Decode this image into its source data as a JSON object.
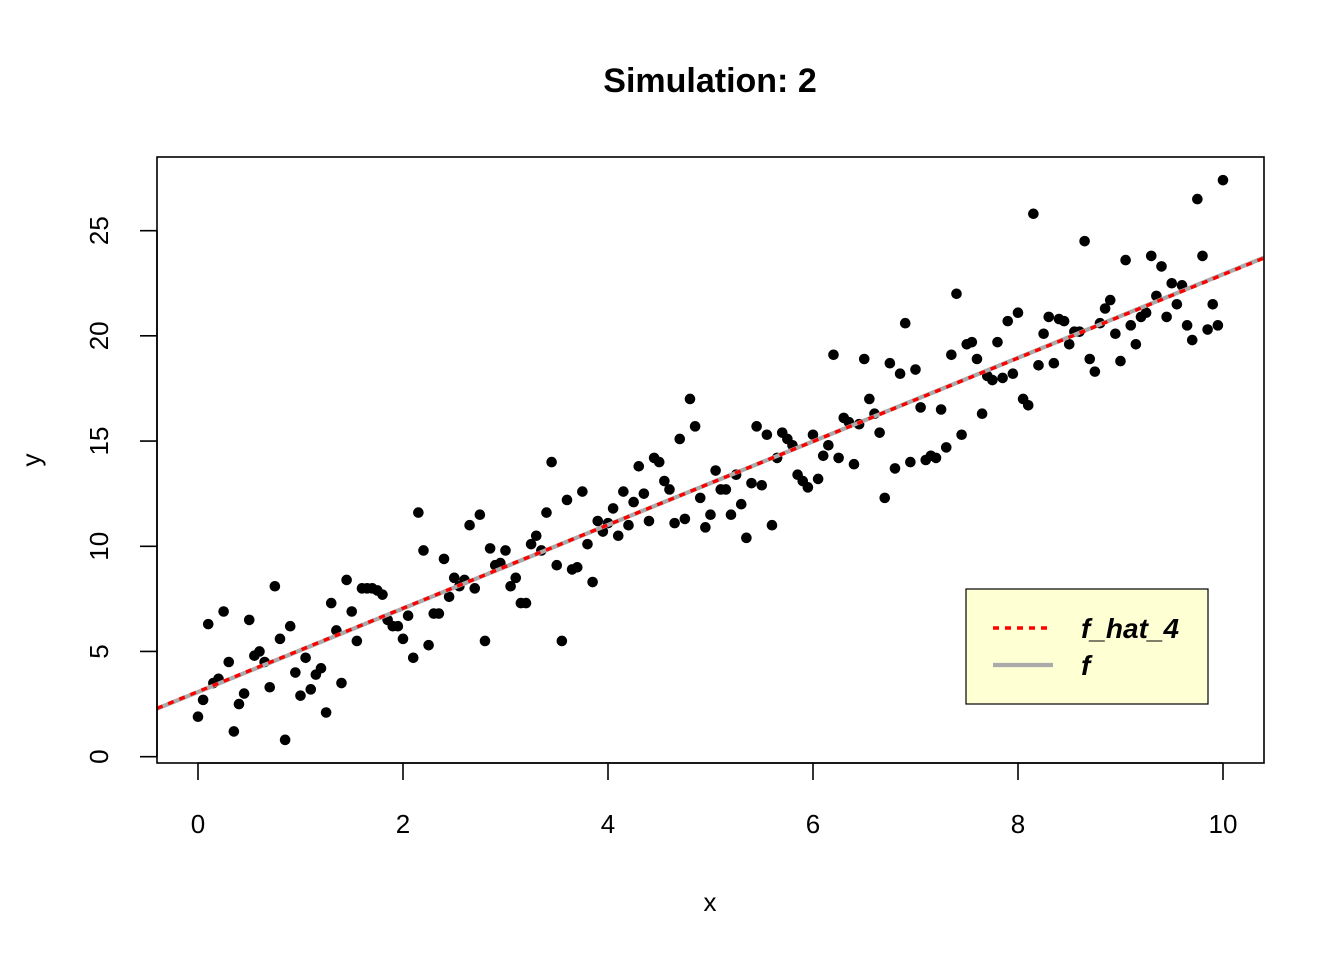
{
  "chart_data": {
    "type": "scatter",
    "title": "Simulation: 2",
    "xlabel": "x",
    "ylabel": "y",
    "xlim": [
      -0.4,
      10.4
    ],
    "ylim": [
      -0.3,
      28.5
    ],
    "xticks": [
      0,
      2,
      4,
      6,
      8,
      10
    ],
    "yticks": [
      0,
      5,
      10,
      15,
      20,
      25
    ],
    "grid": false,
    "legend_position": "bottom-right",
    "legend_background": "#ffffd4",
    "points": {
      "color": "#000000",
      "x": [
        0,
        0.05,
        0.1,
        0.15,
        0.2,
        0.25,
        0.3,
        0.35,
        0.4,
        0.45,
        0.5,
        0.55,
        0.6,
        0.65,
        0.7,
        0.75,
        0.8,
        0.85,
        0.9,
        0.95,
        1.0,
        1.05,
        1.1,
        1.15,
        1.2,
        1.25,
        1.3,
        1.35,
        1.4,
        1.45,
        1.5,
        1.55,
        1.6,
        1.65,
        1.7,
        1.75,
        1.8,
        1.85,
        1.9,
        1.95,
        2.0,
        2.05,
        2.1,
        2.15,
        2.2,
        2.25,
        2.3,
        2.35,
        2.4,
        2.45,
        2.5,
        2.55,
        2.6,
        2.65,
        2.7,
        2.75,
        2.8,
        2.85,
        2.9,
        2.95,
        3.0,
        3.05,
        3.1,
        3.15,
        3.2,
        3.25,
        3.3,
        3.35,
        3.4,
        3.45,
        3.5,
        3.55,
        3.6,
        3.65,
        3.7,
        3.75,
        3.8,
        3.85,
        3.9,
        3.95,
        4.0,
        4.05,
        4.1,
        4.15,
        4.2,
        4.25,
        4.3,
        4.35,
        4.4,
        4.45,
        4.5,
        4.55,
        4.6,
        4.65,
        4.7,
        4.75,
        4.8,
        4.85,
        4.9,
        4.95,
        5.0,
        5.05,
        5.1,
        5.15,
        5.2,
        5.25,
        5.3,
        5.35,
        5.4,
        5.45,
        5.5,
        5.55,
        5.6,
        5.65,
        5.7,
        5.75,
        5.8,
        5.85,
        5.9,
        5.95,
        6.0,
        6.05,
        6.1,
        6.15,
        6.2,
        6.25,
        6.3,
        6.35,
        6.4,
        6.45,
        6.5,
        6.55,
        6.6,
        6.65,
        6.7,
        6.75,
        6.8,
        6.85,
        6.9,
        6.95,
        7.0,
        7.05,
        7.1,
        7.15,
        7.2,
        7.25,
        7.3,
        7.35,
        7.4,
        7.45,
        7.5,
        7.55,
        7.6,
        7.65,
        7.7,
        7.75,
        7.8,
        7.85,
        7.9,
        7.95,
        8.0,
        8.05,
        8.1,
        8.15,
        8.2,
        8.25,
        8.3,
        8.35,
        8.4,
        8.45,
        8.5,
        8.55,
        8.6,
        8.65,
        8.7,
        8.75,
        8.8,
        8.85,
        8.9,
        8.95,
        9.0,
        9.05,
        9.1,
        9.15,
        9.2,
        9.25,
        9.3,
        9.35,
        9.4,
        9.45,
        9.5,
        9.55,
        9.6,
        9.65,
        9.7,
        9.75,
        9.8,
        9.85,
        9.9,
        9.95,
        10.0
      ],
      "y": [
        1.9,
        2.7,
        6.3,
        3.5,
        3.7,
        6.9,
        4.5,
        1.2,
        2.5,
        3.0,
        6.5,
        4.8,
        5.0,
        4.5,
        3.3,
        8.1,
        5.6,
        0.8,
        6.2,
        4.0,
        2.9,
        4.7,
        3.2,
        3.9,
        4.2,
        2.1,
        7.3,
        6.0,
        3.5,
        8.4,
        6.9,
        5.5,
        8.0,
        8.0,
        8.0,
        7.9,
        7.7,
        6.5,
        6.2,
        6.2,
        5.6,
        6.7,
        4.7,
        11.6,
        9.8,
        5.3,
        6.8,
        6.8,
        9.4,
        7.6,
        8.5,
        8.1,
        8.4,
        11.0,
        8.0,
        11.5,
        5.5,
        9.9,
        9.1,
        9.2,
        9.8,
        8.1,
        8.5,
        7.3,
        7.3,
        10.1,
        10.5,
        9.8,
        11.6,
        14.0,
        9.1,
        5.5,
        12.2,
        8.9,
        9.0,
        12.6,
        10.1,
        8.3,
        11.2,
        10.7,
        11.1,
        11.8,
        10.5,
        12.6,
        11.0,
        12.1,
        13.8,
        12.5,
        11.2,
        14.2,
        14.0,
        13.1,
        12.7,
        11.1,
        15.1,
        11.3,
        17.0,
        15.7,
        12.3,
        10.9,
        11.5,
        13.6,
        12.7,
        12.7,
        11.5,
        13.4,
        12.0,
        10.4,
        13.0,
        15.7,
        12.9,
        15.3,
        11.0,
        14.2,
        15.4,
        15.1,
        14.8,
        13.4,
        13.1,
        12.8,
        15.3,
        13.2,
        14.3,
        14.8,
        19.1,
        14.2,
        16.1,
        15.9,
        13.9,
        15.8,
        18.9,
        17.0,
        16.3,
        15.4,
        12.3,
        18.7,
        13.7,
        18.2,
        20.6,
        14.0,
        18.4,
        16.6,
        14.1,
        14.3,
        14.2,
        16.5,
        14.7,
        19.1,
        22.0,
        15.3,
        19.6,
        19.7,
        18.9,
        16.3,
        18.1,
        17.9,
        19.7,
        18.0,
        20.7,
        18.2,
        21.1,
        17.0,
        16.7,
        25.8,
        18.6,
        20.1,
        20.9,
        18.7,
        20.8,
        20.7,
        19.6,
        20.2,
        20.2,
        24.5,
        18.9,
        18.3,
        20.6,
        21.3,
        21.7,
        20.1,
        18.8,
        23.6,
        20.5,
        19.6,
        20.9,
        21.1,
        23.8,
        21.9,
        23.3,
        20.9,
        22.5,
        21.5,
        22.4,
        20.5,
        19.8,
        26.5,
        23.8,
        20.3,
        21.5,
        20.5,
        27.4
      ]
    },
    "series": [
      {
        "name": "f",
        "type": "line",
        "color": "#aaaaaa",
        "style": "solid",
        "x": [
          -0.4,
          10.4
        ],
        "y": [
          2.28,
          23.72
        ]
      },
      {
        "name": "f_hat_4",
        "type": "line",
        "color": "#ff0000",
        "style": "dotted",
        "x": [
          -0.4,
          10.4
        ],
        "y": [
          2.3,
          23.7
        ]
      }
    ],
    "legend": [
      {
        "label": "f_hat_4",
        "color": "#ff0000",
        "style": "dotted"
      },
      {
        "label": "f",
        "color": "#aaaaaa",
        "style": "solid"
      }
    ]
  }
}
